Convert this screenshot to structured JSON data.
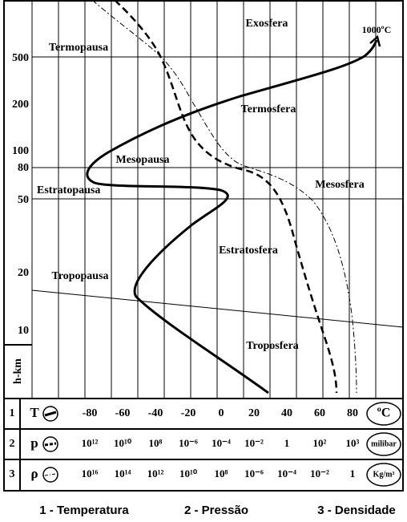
{
  "labels": {
    "exosfera": "Exosfera",
    "termopausa": "Termopausa",
    "top_temperature": "1000ºC",
    "termosfera": "Termosfera",
    "mesopausa": "Mesopausa",
    "mesosfera": "Mesosfera",
    "estratopausa": "Estratopausa",
    "estratosfera": "Estratosfera",
    "tropopausa": "Tropopausa",
    "troposfera": "Troposfera"
  },
  "height_axis": {
    "title": "h-km",
    "ticks": [
      "500",
      "200",
      "100",
      "80",
      "50",
      "20",
      "10"
    ]
  },
  "scales": [
    {
      "number": "1",
      "symbol": "T",
      "unit": "ºC",
      "ticks": [
        "-80",
        "-60",
        "-40",
        "-20",
        "0",
        "20",
        "40",
        "60",
        "80"
      ]
    },
    {
      "number": "2",
      "symbol": "p",
      "unit": "milibar",
      "ticks": [
        "10¹²",
        "10¹⁰",
        "10⁸",
        "10⁻⁶",
        "10⁻⁴",
        "10⁻²",
        "1",
        "10²",
        "10³"
      ]
    },
    {
      "number": "3",
      "symbol": "ρ",
      "unit": "Kg/m³",
      "ticks": [
        "10¹⁶",
        "10¹⁴",
        "10¹²",
        "10¹⁰",
        "10⁸",
        "10⁻⁶",
        "10⁻⁴",
        "10⁻²",
        "1"
      ]
    }
  ],
  "legend": [
    "1 - Temperatura",
    "2 - Pressão",
    "3 - Densidade"
  ]
}
